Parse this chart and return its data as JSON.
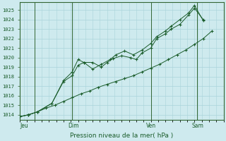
{
  "xlabel": "Pression niveau de la mer( hPa )",
  "background_color": "#ceeaee",
  "grid_color": "#aad4da",
  "line_color": "#1a5c2a",
  "spine_color": "#336633",
  "ylim": [
    1013.5,
    1025.8
  ],
  "xlim": [
    0.0,
    7.0
  ],
  "yticks": [
    1014,
    1015,
    1016,
    1017,
    1018,
    1019,
    1020,
    1021,
    1022,
    1023,
    1024,
    1025
  ],
  "vlines": [
    0.5,
    1.8,
    4.5,
    6.1
  ],
  "day_labels": [
    "Jeu",
    "Dim",
    "Ven",
    "Sam"
  ],
  "day_positions": [
    0.15,
    1.85,
    4.52,
    6.12
  ],
  "series1_x": [
    0.0,
    0.3,
    0.6,
    0.9,
    1.2,
    1.5,
    1.8,
    2.1,
    2.4,
    2.7,
    3.0,
    3.3,
    3.6,
    3.9,
    4.2,
    4.5,
    4.8,
    5.1,
    5.4,
    5.7,
    6.0,
    6.3,
    6.6
  ],
  "series1_y": [
    1013.8,
    1014.0,
    1014.3,
    1014.7,
    1015.0,
    1015.4,
    1015.8,
    1016.2,
    1016.5,
    1016.9,
    1017.2,
    1017.5,
    1017.8,
    1018.1,
    1018.5,
    1018.9,
    1019.3,
    1019.8,
    1020.3,
    1020.8,
    1021.4,
    1022.0,
    1022.8
  ],
  "series2_x": [
    0.0,
    0.3,
    0.6,
    1.1,
    1.5,
    1.8,
    2.0,
    2.2,
    2.5,
    2.8,
    3.0,
    3.2,
    3.5,
    3.8,
    4.0,
    4.2,
    4.5,
    4.7,
    5.0,
    5.2,
    5.5,
    5.8,
    6.0,
    6.3
  ],
  "series2_y": [
    1013.8,
    1014.0,
    1014.3,
    1015.2,
    1017.5,
    1018.1,
    1019.2,
    1019.5,
    1019.5,
    1019.0,
    1019.5,
    1019.9,
    1020.2,
    1020.0,
    1019.8,
    1020.5,
    1021.0,
    1022.0,
    1022.5,
    1023.0,
    1023.5,
    1024.5,
    1025.2,
    1024.0
  ],
  "series3_x": [
    0.0,
    0.3,
    0.6,
    1.1,
    1.5,
    1.8,
    2.0,
    2.2,
    2.5,
    2.8,
    3.1,
    3.3,
    3.6,
    3.9,
    4.2,
    4.5,
    4.7,
    5.0,
    5.2,
    5.5,
    5.8,
    6.0,
    6.3
  ],
  "series3_y": [
    1013.8,
    1014.0,
    1014.3,
    1015.2,
    1017.6,
    1018.5,
    1019.8,
    1019.5,
    1018.8,
    1019.3,
    1019.8,
    1020.3,
    1020.7,
    1020.3,
    1020.8,
    1021.5,
    1022.2,
    1022.8,
    1023.3,
    1024.0,
    1024.7,
    1025.5,
    1023.9
  ]
}
